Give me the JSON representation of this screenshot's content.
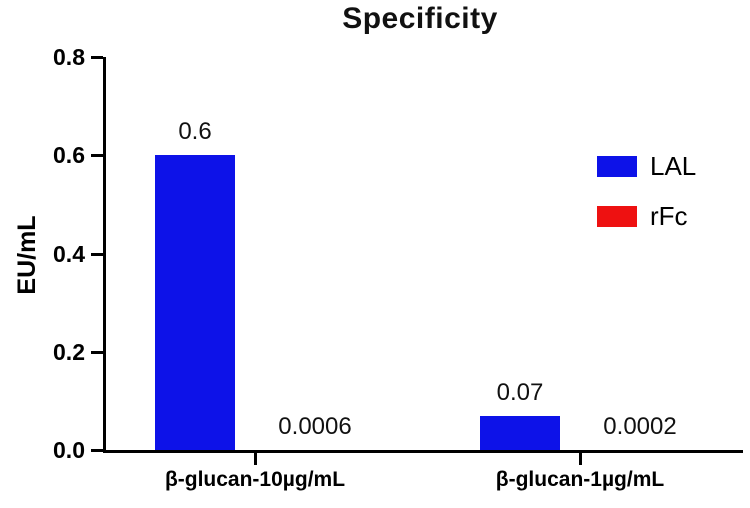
{
  "chart_data": {
    "type": "bar",
    "title": "Specificity",
    "xlabel": "",
    "ylabel": "EU/mL",
    "categories": [
      "β-glucan-10µg/mL",
      "β-glucan-1µg/mL"
    ],
    "series": [
      {
        "name": "LAL",
        "color": "#0d12e8",
        "values": [
          0.6,
          0.07
        ],
        "labels": [
          "0.6",
          "0.07"
        ]
      },
      {
        "name": "rFc",
        "color": "#ee1111",
        "values": [
          0.0006,
          0.0002
        ],
        "labels": [
          "0.0006",
          "0.0002"
        ]
      }
    ],
    "ylim": [
      0,
      0.8
    ],
    "yticks": [
      0.0,
      0.2,
      0.4,
      0.6,
      0.8
    ],
    "ytick_labels": [
      "0.0",
      "0.2",
      "0.4",
      "0.6",
      "0.8"
    ],
    "grid": false,
    "legend_position": "right",
    "axis_color": "#000000"
  }
}
